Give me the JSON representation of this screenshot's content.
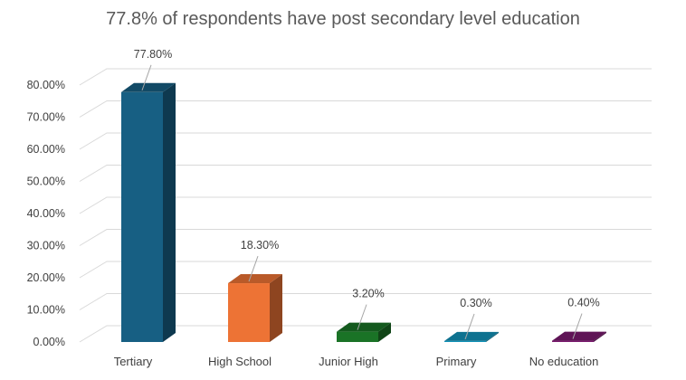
{
  "chart_data": {
    "type": "bar",
    "title": "77.8% of respondents have post secondary level education",
    "categories": [
      "Tertiary",
      "High School",
      "Junior High",
      "Primary",
      "No education"
    ],
    "values": [
      77.8,
      18.3,
      3.2,
      0.3,
      0.4
    ],
    "data_labels": [
      "77.80%",
      "18.30%",
      "3.20%",
      "0.30%",
      "0.40%"
    ],
    "colors": [
      "#175f83",
      "#ed7335",
      "#1a7326",
      "#1292b8",
      "#7a1a6e"
    ],
    "ylim": [
      0,
      80
    ],
    "yticks": [
      0,
      10,
      20,
      30,
      40,
      50,
      60,
      70,
      80
    ],
    "ytick_labels": [
      "0.00%",
      "10.00%",
      "20.00%",
      "30.00%",
      "40.00%",
      "50.00%",
      "60.00%",
      "70.00%",
      "80.00%"
    ],
    "grid": true,
    "style": "3d-column"
  }
}
